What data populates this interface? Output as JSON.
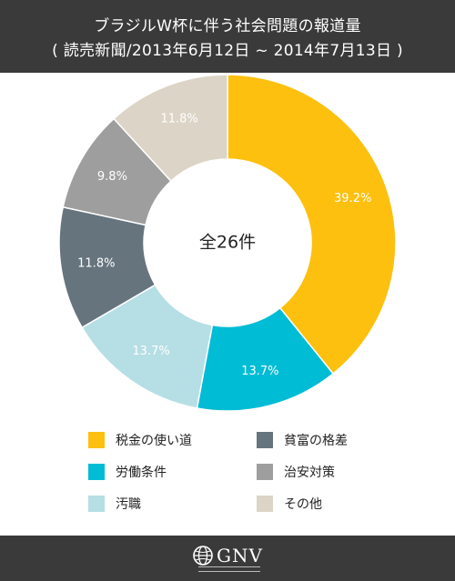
{
  "header": {
    "title_line1": "ブラジルW杯に伴う社会問題の報道量",
    "title_line2": "( 読売新聞/2013年6月12日 ~ 2014年7月13日 )"
  },
  "chart_data": {
    "type": "pie",
    "donut": true,
    "center_label": "全26件",
    "slices": [
      {
        "label": "税金の使い道",
        "value": 39.2,
        "value_label": "39.2%",
        "color": "#fdc00f"
      },
      {
        "label": "労働条件",
        "value": 13.7,
        "value_label": "13.7%",
        "color": "#00bcd4"
      },
      {
        "label": "汚職",
        "value": 13.7,
        "value_label": "13.7%",
        "color": "#b6dee5"
      },
      {
        "label": "貧富の格差",
        "value": 11.8,
        "value_label": "11.8%",
        "color": "#66747e"
      },
      {
        "label": "治安対策",
        "value": 9.8,
        "value_label": "9.8%",
        "color": "#9e9e9e"
      },
      {
        "label": "その他",
        "value": 11.8,
        "value_label": "11.8%",
        "color": "#dcd4c6"
      }
    ],
    "legend_position": "bottom"
  },
  "legend": [
    {
      "label": "税金の使い道",
      "color": "#fdc00f"
    },
    {
      "label": "貧富の格差",
      "color": "#66747e"
    },
    {
      "label": "労働条件",
      "color": "#00bcd4"
    },
    {
      "label": "治安対策",
      "color": "#9e9e9e"
    },
    {
      "label": "汚職",
      "color": "#b6dee5"
    },
    {
      "label": "その他",
      "color": "#dcd4c6"
    }
  ],
  "footer": {
    "logo_text": "GNV",
    "logo_icon": "globe-icon"
  }
}
